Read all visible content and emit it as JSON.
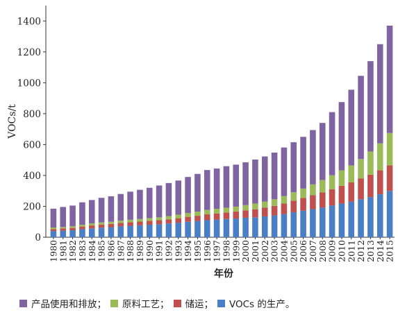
{
  "chart_data": {
    "type": "bar",
    "stacked": true,
    "xlabel": "年份",
    "ylabel": "VOCs/t",
    "ylim": [
      0,
      1500
    ],
    "yticks": [
      0,
      200,
      400,
      600,
      800,
      1000,
      1200,
      1400
    ],
    "grid": false,
    "legend_position": "bottom",
    "categories": [
      "1980",
      "1981",
      "1982",
      "1983",
      "1984",
      "1985",
      "1986",
      "1987",
      "1988",
      "1989",
      "1990",
      "1991",
      "1992",
      "1993",
      "1994",
      "1995",
      "1996",
      "1997",
      "1998",
      "1999",
      "2000",
      "2001",
      "2002",
      "2003",
      "2004",
      "2005",
      "2006",
      "2007",
      "2008",
      "2009",
      "2010",
      "2011",
      "2012",
      "2013",
      "2014",
      "2015"
    ],
    "series": [
      {
        "name": "VOCs 的生产",
        "color": "#4a7fc6",
        "values": [
          40,
          42,
          45,
          52,
          57,
          62,
          65,
          70,
          74,
          77,
          81,
          84,
          89,
          94,
          100,
          105,
          110,
          114,
          118,
          121,
          126,
          129,
          135,
          141,
          150,
          162,
          172,
          182,
          192,
          205,
          218,
          230,
          246,
          260,
          278,
          300
        ]
      },
      {
        "name": "储运",
        "color": "#c0504d",
        "values": [
          13,
          14,
          15,
          17,
          19,
          20,
          21,
          22,
          23,
          24,
          25,
          26,
          27,
          29,
          32,
          34,
          38,
          40,
          42,
          45,
          48,
          52,
          56,
          62,
          68,
          74,
          82,
          90,
          98,
          106,
          115,
          125,
          135,
          145,
          155,
          165
        ]
      },
      {
        "name": "原料工艺",
        "color": "#9bbb59",
        "values": [
          10,
          10,
          11,
          12,
          13,
          14,
          14,
          15,
          16,
          17,
          18,
          19,
          21,
          23,
          25,
          27,
          29,
          30,
          31,
          32,
          34,
          37,
          40,
          43,
          48,
          55,
          61,
          70,
          80,
          90,
          100,
          110,
          125,
          150,
          175,
          210
        ]
      },
      {
        "name": "产品使用和排放",
        "color": "#8064a2",
        "values": [
          122,
          130,
          134,
          145,
          152,
          159,
          165,
          173,
          182,
          189,
          196,
          206,
          214,
          221,
          233,
          244,
          258,
          261,
          269,
          272,
          277,
          285,
          292,
          302,
          315,
          324,
          335,
          352,
          370,
          409,
          442,
          490,
          539,
          585,
          642,
          695
        ]
      }
    ],
    "legend_order": [
      "产品使用和排放",
      "原料工艺",
      "储运",
      "VOCs 的生产"
    ]
  },
  "legend": {
    "items": [
      {
        "label": "产品使用和排放；",
        "color": "#8064a2"
      },
      {
        "label": "原料工艺；",
        "color": "#9bbb59"
      },
      {
        "label": "储运；",
        "color": "#c0504d"
      },
      {
        "label": "VOCs 的生产。",
        "color": "#4a7fc6"
      }
    ]
  }
}
